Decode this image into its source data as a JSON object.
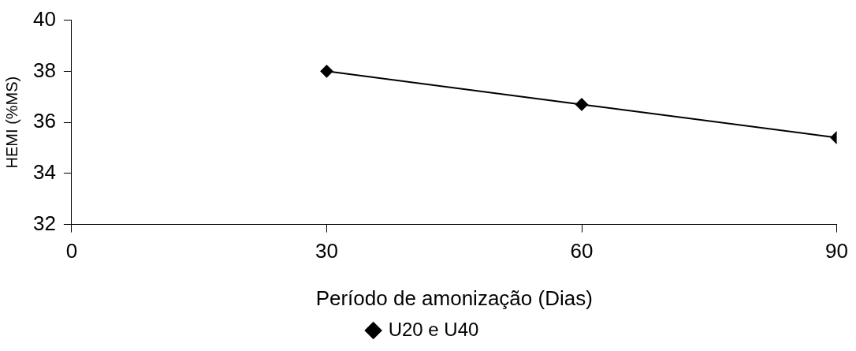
{
  "chart_data": {
    "type": "line",
    "xlabel": "Período de amonização (Dias)",
    "ylabel": "HEMI (%MS)",
    "x": [
      30,
      60,
      90
    ],
    "series": [
      {
        "name": "U20 e U40",
        "color": "#000000",
        "values": [
          38.0,
          36.7,
          35.4
        ]
      }
    ],
    "xlim": [
      0,
      90
    ],
    "xticks": [
      0,
      30,
      60,
      90
    ],
    "ylim": [
      32,
      40
    ],
    "yticks": [
      32,
      34,
      36,
      38,
      40
    ],
    "grid": false,
    "legend": "bottom",
    "marker": "diamond",
    "line_style": "solid"
  }
}
